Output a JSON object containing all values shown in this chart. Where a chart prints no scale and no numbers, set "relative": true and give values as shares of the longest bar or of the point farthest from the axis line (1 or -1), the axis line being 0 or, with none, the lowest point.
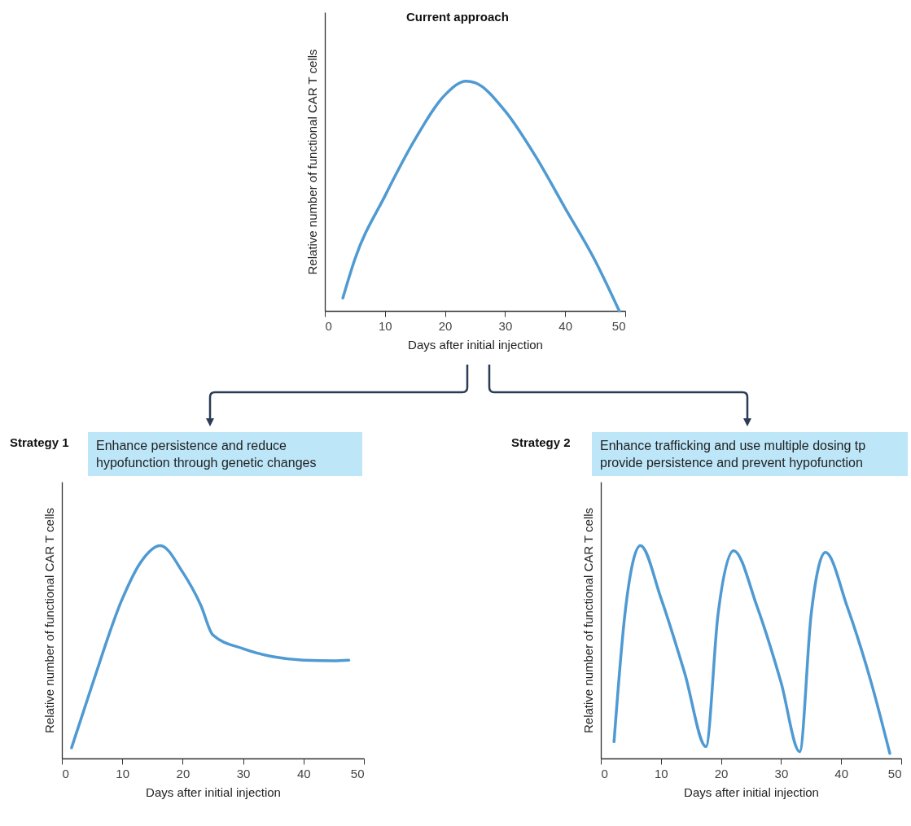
{
  "chart_data": [
    {
      "type": "line",
      "title": "Current approach",
      "xlabel": "Days after initial injection",
      "ylabel": "Relative number of functional CAR T cells",
      "relative": true,
      "xlim": [
        0,
        50
      ],
      "xticks": [
        0,
        10,
        20,
        30,
        40,
        50
      ],
      "grid": false,
      "x": [
        3,
        5,
        10,
        15,
        20,
        23.5,
        25,
        30,
        35,
        40,
        45,
        49
      ],
      "series": [
        {
          "color": "#4f9ad2",
          "values": [
            0.056,
            0.225,
            0.5,
            0.746,
            0.94,
            1,
            0.993,
            0.87,
            0.676,
            0.447,
            0.218,
            0
          ]
        }
      ]
    },
    {
      "type": "line",
      "title": "Strategy 1",
      "subtitle": "Enhance persistence and reduce hypofunction through genetic changes",
      "xlabel": "Days after initial injection",
      "ylabel": "Relative number of functional CAR T cells",
      "relative": true,
      "xlim": [
        0,
        50
      ],
      "xticks": [
        0,
        10,
        20,
        30,
        40,
        50
      ],
      "grid": false,
      "x": [
        1.6,
        5,
        10,
        13,
        16.3,
        20,
        23,
        25,
        30,
        35,
        40,
        45,
        47.5
      ],
      "series": [
        {
          "color": "#4f9ad2",
          "values": [
            0.05,
            0.344,
            0.75,
            0.92,
            1,
            0.875,
            0.72,
            0.58,
            0.516,
            0.478,
            0.462,
            0.459,
            0.462
          ]
        }
      ]
    },
    {
      "type": "line",
      "title": "Strategy 2",
      "subtitle": "Enhance trafficking and use multiple dosing tp provide persistence and prevent hypofunction",
      "xlabel": "Days after initial injection",
      "ylabel": "Relative number of functional CAR T cells",
      "relative": true,
      "xlim": [
        0,
        50
      ],
      "xticks": [
        0,
        10,
        20,
        30,
        40,
        50
      ],
      "grid": false,
      "x": [
        2.2,
        4,
        6.6,
        10,
        14,
        17.5,
        19.5,
        22.1,
        26,
        30,
        33.1,
        35,
        37.4,
        41,
        45,
        48.1
      ],
      "series": [
        {
          "color": "#4f9ad2",
          "values": [
            0.079,
            0.675,
            1,
            0.754,
            0.397,
            0.056,
            0.675,
            0.976,
            0.714,
            0.357,
            0.032,
            0.675,
            0.968,
            0.714,
            0.357,
            0.024
          ]
        }
      ]
    }
  ]
}
